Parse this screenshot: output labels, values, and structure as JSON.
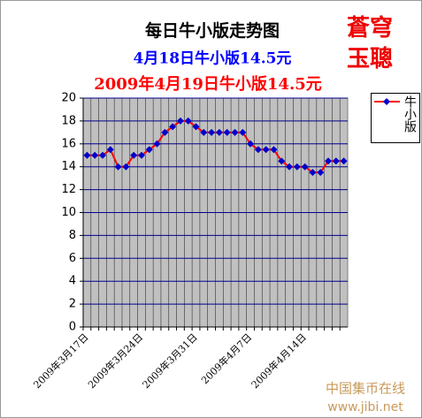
{
  "chart_data": {
    "type": "line",
    "title": "每日牛小版走势图",
    "subtitle": "4月18日牛小版14.5元",
    "subtitle2": "2009年4月19日牛小版14.5元",
    "annotations": [
      "蒼穹",
      "玉聰",
      "中国集币在线",
      "www.jibi.net"
    ],
    "categories": [
      "2009年3月17日",
      null,
      null,
      null,
      null,
      null,
      null,
      "2009年3月24日",
      null,
      null,
      null,
      null,
      null,
      null,
      "2009年3月31日",
      null,
      null,
      null,
      null,
      null,
      null,
      "2009年4月7日",
      null,
      null,
      null,
      null,
      null,
      null,
      "2009年4月14日",
      null,
      null,
      null,
      null,
      null
    ],
    "series": [
      {
        "name": "牛小版",
        "color": "#ff0000",
        "marker_color": "#0000cc",
        "values": [
          15,
          15,
          15,
          15.5,
          14,
          14,
          15,
          15,
          15.5,
          16,
          17,
          17.5,
          18,
          18,
          17.5,
          17,
          17,
          17,
          17,
          17,
          17,
          16,
          15.5,
          15.5,
          15.5,
          14.5,
          14,
          14,
          14,
          13.5,
          13.5,
          14.5,
          14.5,
          14.5
        ]
      }
    ],
    "ylim": [
      0,
      20
    ],
    "yticks": [
      0,
      2,
      4,
      6,
      8,
      10,
      12,
      14,
      16,
      18,
      20
    ],
    "grid": true
  }
}
